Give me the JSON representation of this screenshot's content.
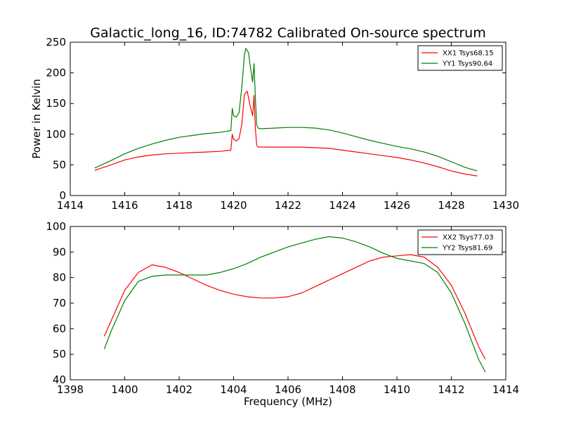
{
  "figure": {
    "title": "Galactic_long_16, ID:74782 Calibrated On-source spectrum",
    "xlabel": "Frequency (MHz)",
    "ylabel": "Power in Kelvin"
  },
  "colors": {
    "xx": "#ff0000",
    "yy": "#008000"
  },
  "chart_data": [
    {
      "type": "line",
      "title": "Galactic_long_16, ID:74782 Calibrated On-source spectrum",
      "xlabel": "",
      "ylabel": "Power in Kelvin",
      "xlim": [
        1414,
        1430
      ],
      "ylim": [
        0,
        250
      ],
      "xticks": [
        1414,
        1416,
        1418,
        1420,
        1422,
        1424,
        1426,
        1428,
        1430
      ],
      "yticks": [
        0,
        50,
        100,
        150,
        200,
        250
      ],
      "legend": "top-right",
      "grid": false,
      "series": [
        {
          "name": "XX1 Tsys68.15",
          "color": "#ff0000",
          "x": [
            1414.9,
            1415.5,
            1416,
            1416.5,
            1417,
            1417.5,
            1418,
            1418.5,
            1419,
            1419.5,
            1419.9,
            1419.95,
            1420.0,
            1420.1,
            1420.2,
            1420.3,
            1420.4,
            1420.5,
            1420.6,
            1420.7,
            1420.75,
            1420.8,
            1420.85,
            1420.9,
            1421.0,
            1421.5,
            1422,
            1422.5,
            1423,
            1423.5,
            1424,
            1424.5,
            1425,
            1425.5,
            1426,
            1426.5,
            1427,
            1427.5,
            1428,
            1428.5,
            1428.95
          ],
          "y": [
            41,
            50,
            58,
            63,
            66,
            68,
            69,
            70,
            71,
            72,
            74,
            100,
            92,
            89,
            93,
            115,
            165,
            170,
            148,
            130,
            163,
            110,
            82,
            79,
            79,
            79,
            79,
            79,
            78,
            77,
            74,
            71,
            68,
            65,
            62,
            58,
            53,
            47,
            40,
            35,
            32
          ]
        },
        {
          "name": "YY1 Tsys90.64",
          "color": "#008000",
          "x": [
            1414.9,
            1415.5,
            1416,
            1416.5,
            1417,
            1417.5,
            1418,
            1418.5,
            1419,
            1419.5,
            1419.9,
            1419.95,
            1420.0,
            1420.1,
            1420.2,
            1420.3,
            1420.4,
            1420.45,
            1420.55,
            1420.6,
            1420.7,
            1420.75,
            1420.8,
            1420.85,
            1420.9,
            1421.0,
            1421.5,
            1422,
            1422.5,
            1423,
            1423.5,
            1424,
            1424.5,
            1425,
            1425.5,
            1426,
            1426.5,
            1427,
            1427.5,
            1428,
            1428.5,
            1428.95
          ],
          "y": [
            45,
            57,
            68,
            77,
            84,
            90,
            95,
            98,
            101,
            103,
            106,
            142,
            130,
            128,
            135,
            175,
            230,
            240,
            233,
            215,
            185,
            215,
            160,
            115,
            110,
            109,
            110,
            111,
            111,
            110,
            107,
            102,
            96,
            90,
            85,
            80,
            76,
            71,
            64,
            55,
            46,
            40
          ]
        }
      ]
    },
    {
      "type": "line",
      "title": "",
      "xlabel": "Frequency (MHz)",
      "ylabel": "",
      "xlim": [
        1398,
        1414
      ],
      "ylim": [
        40,
        100
      ],
      "xticks": [
        1398,
        1400,
        1402,
        1404,
        1406,
        1408,
        1410,
        1412,
        1414
      ],
      "yticks": [
        40,
        50,
        60,
        70,
        80,
        90,
        100
      ],
      "legend": "top-right",
      "grid": false,
      "series": [
        {
          "name": "XX2 Tsys77.03",
          "color": "#ff0000",
          "x": [
            1399.25,
            1399.5,
            1400,
            1400.5,
            1401,
            1401.5,
            1402,
            1402.5,
            1403,
            1403.5,
            1404,
            1404.5,
            1405,
            1405.5,
            1406,
            1406.5,
            1407,
            1407.5,
            1408,
            1408.5,
            1409,
            1409.5,
            1410,
            1410.5,
            1411,
            1411.5,
            1412,
            1412.5,
            1413,
            1413.25
          ],
          "y": [
            57,
            63,
            75,
            82,
            85,
            84,
            82,
            79.5,
            77,
            75,
            73.5,
            72.5,
            72,
            72,
            72.5,
            74,
            76.5,
            79,
            81.5,
            84,
            86.5,
            88,
            88.5,
            89,
            88,
            84,
            77,
            66,
            53,
            48
          ]
        },
        {
          "name": "YY2 Tsys81.69",
          "color": "#008000",
          "x": [
            1399.25,
            1399.5,
            1400,
            1400.5,
            1401,
            1401.5,
            1402,
            1402.5,
            1403,
            1403.5,
            1404,
            1404.5,
            1405,
            1405.5,
            1406,
            1406.5,
            1407,
            1407.5,
            1408,
            1408.5,
            1409,
            1409.5,
            1410,
            1410.5,
            1411,
            1411.5,
            1412,
            1412.5,
            1413,
            1413.25
          ],
          "y": [
            52,
            59,
            71,
            78.5,
            80.5,
            81,
            81,
            81,
            81,
            82,
            83.5,
            85.5,
            88,
            90,
            92,
            93.5,
            95,
            96,
            95.5,
            94,
            92,
            89.5,
            87.5,
            86.5,
            85.5,
            82,
            74,
            62,
            48,
            43
          ]
        }
      ]
    }
  ]
}
